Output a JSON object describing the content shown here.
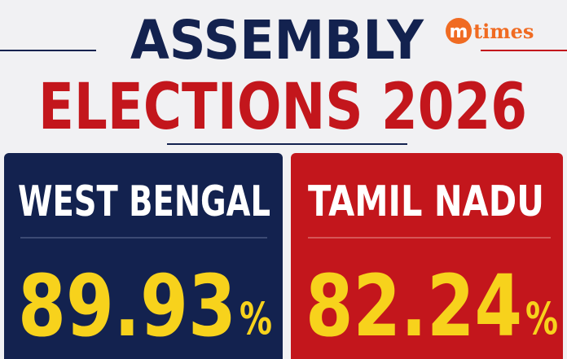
{
  "header": {
    "line1": "ASSEMBLY",
    "line2": "ELECTIONS 2026"
  },
  "logo": {
    "mark": "m",
    "text": "times"
  },
  "panels": [
    {
      "name": "WEST BENGAL",
      "value": "89.93",
      "unit": "%"
    },
    {
      "name": "TAMIL NADU",
      "value": "82.24",
      "unit": "%"
    }
  ]
}
